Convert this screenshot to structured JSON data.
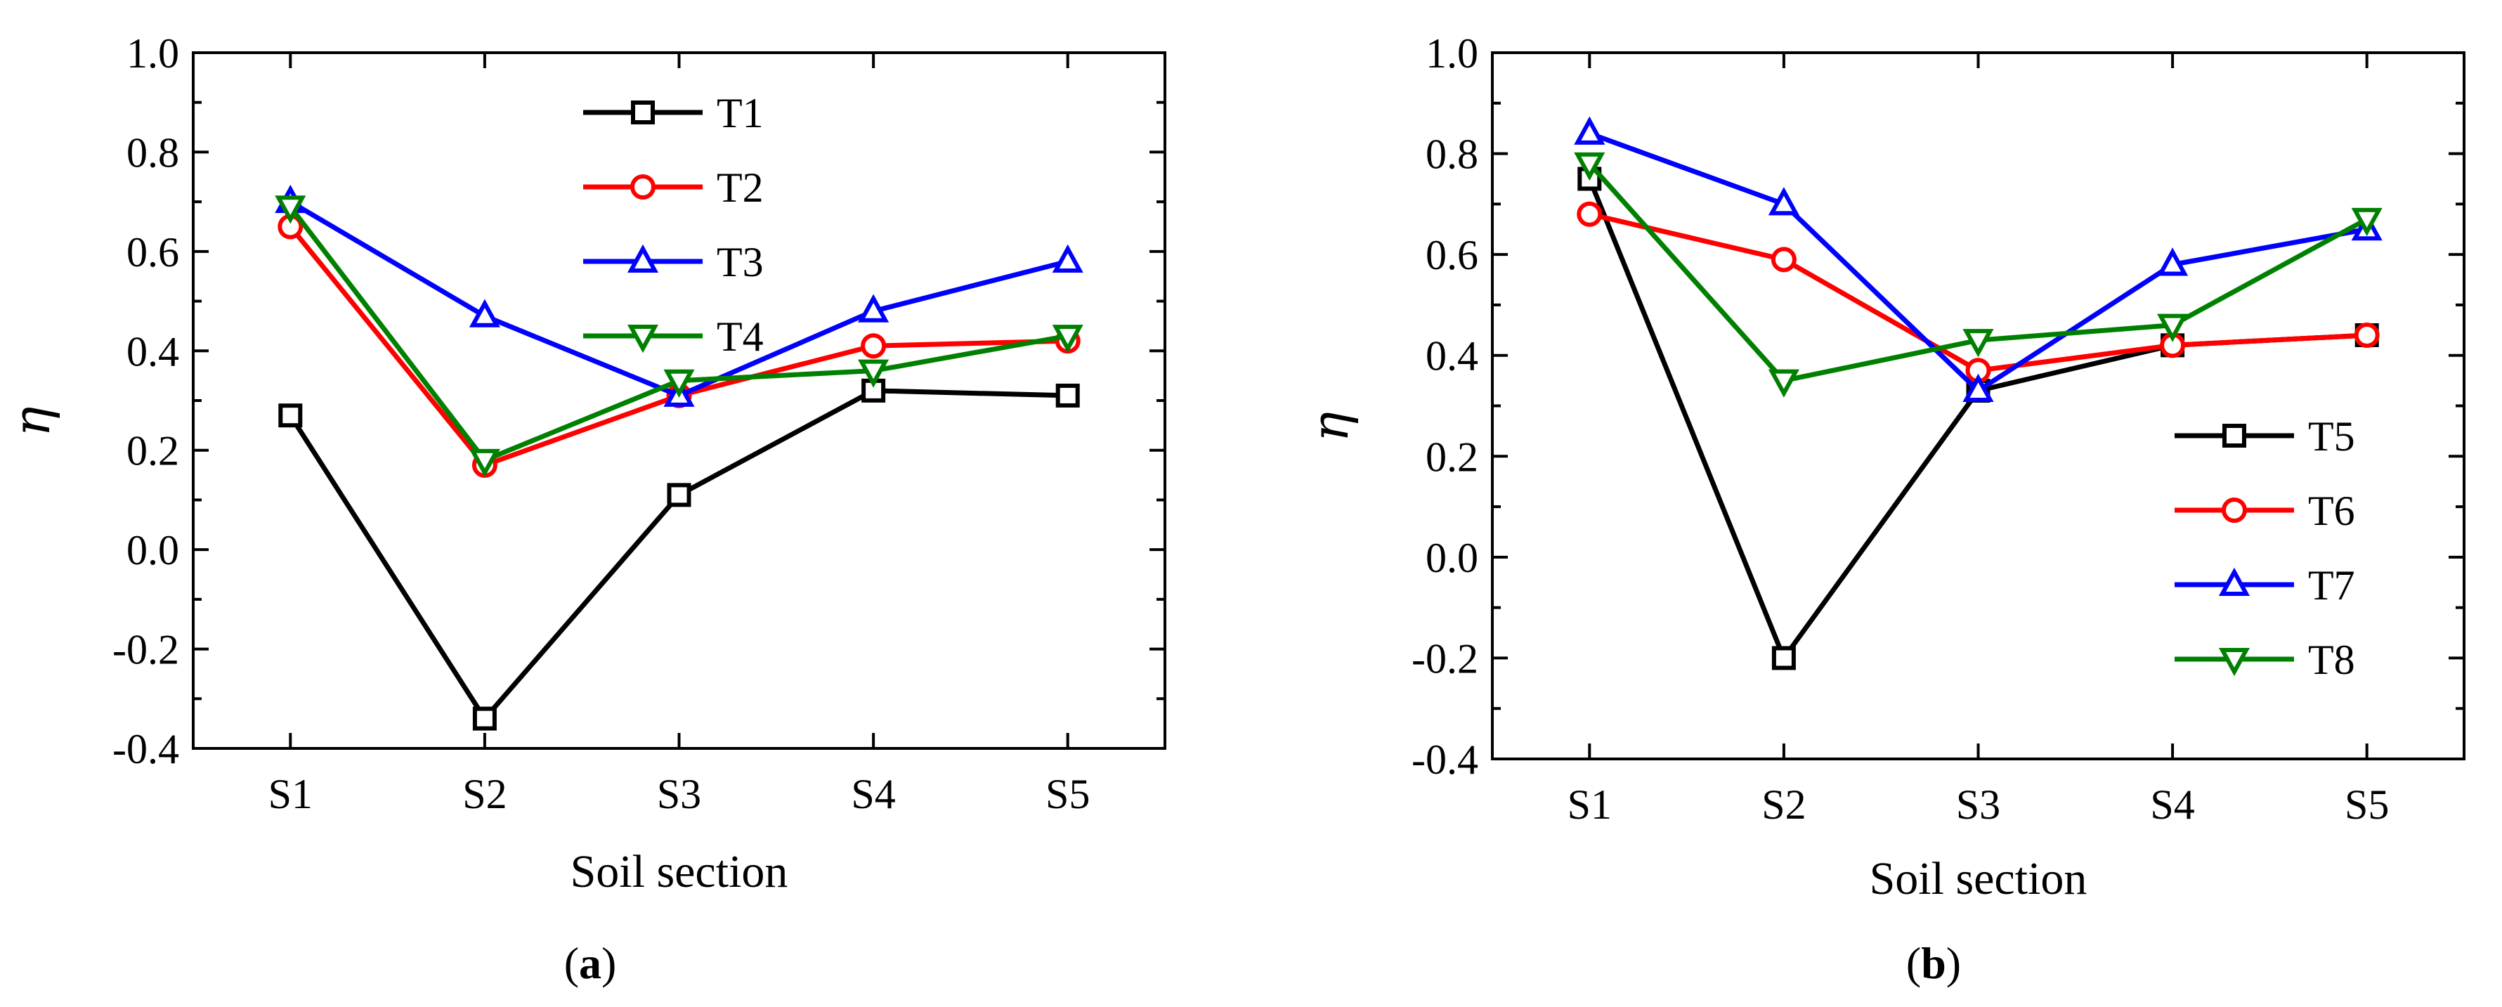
{
  "chart_data": [
    {
      "type": "line",
      "panel_label": "a",
      "xlabel": "Soil section",
      "ylabel": "η",
      "categories": [
        "S1",
        "S2",
        "S3",
        "S4",
        "S5"
      ],
      "ylim": [
        -0.4,
        1.0
      ],
      "yticks": [
        "-0.4",
        "-0.2",
        "0.0",
        "0.2",
        "0.4",
        "0.6",
        "0.8",
        "1.0"
      ],
      "legend_position": "top-center",
      "series": [
        {
          "name": "T1",
          "color": "#000000",
          "marker": "square",
          "values": [
            0.27,
            -0.34,
            0.11,
            0.32,
            0.31
          ]
        },
        {
          "name": "T2",
          "color": "#ff0000",
          "marker": "circle",
          "values": [
            0.65,
            0.17,
            0.31,
            0.41,
            0.42
          ]
        },
        {
          "name": "T3",
          "color": "#0000ff",
          "marker": "triangle-up",
          "values": [
            0.7,
            0.47,
            0.31,
            0.48,
            0.58
          ]
        },
        {
          "name": "T4",
          "color": "#008000",
          "marker": "triangle-down",
          "values": [
            0.69,
            0.18,
            0.34,
            0.36,
            0.43
          ]
        }
      ]
    },
    {
      "type": "line",
      "panel_label": "b",
      "xlabel": "Soil section",
      "ylabel": "η",
      "categories": [
        "S1",
        "S2",
        "S3",
        "S4",
        "S5"
      ],
      "ylim": [
        -0.4,
        1.0
      ],
      "yticks": [
        "-0.4",
        "-0.2",
        "0.0",
        "0.2",
        "0.4",
        "0.6",
        "0.8",
        "1.0"
      ],
      "legend_position": "bottom-right",
      "series": [
        {
          "name": "T5",
          "color": "#000000",
          "marker": "square",
          "values": [
            0.75,
            -0.2,
            0.33,
            0.42,
            0.44
          ]
        },
        {
          "name": "T6",
          "color": "#ff0000",
          "marker": "circle",
          "values": [
            0.68,
            0.59,
            0.37,
            0.42,
            0.44
          ]
        },
        {
          "name": "T7",
          "color": "#0000ff",
          "marker": "triangle-up",
          "values": [
            0.84,
            0.7,
            0.33,
            0.58,
            0.65
          ]
        },
        {
          "name": "T8",
          "color": "#008000",
          "marker": "triangle-down",
          "values": [
            0.78,
            0.35,
            0.43,
            0.46,
            0.67
          ]
        }
      ]
    }
  ]
}
